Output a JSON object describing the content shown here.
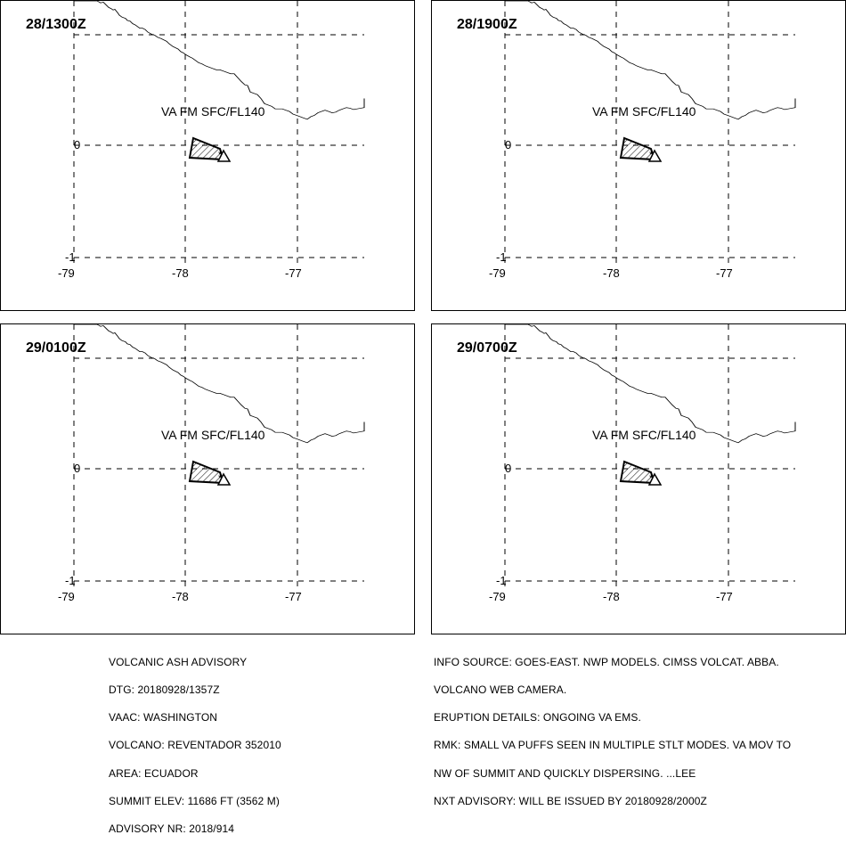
{
  "panels": [
    {
      "title": "28/1300Z",
      "va_label": "VA FM SFC/FL140"
    },
    {
      "title": "28/1900Z",
      "va_label": "VA FM SFC/FL140"
    },
    {
      "title": "29/0100Z",
      "va_label": "VA FM SFC/FL140"
    },
    {
      "title": "29/0700Z",
      "va_label": "VA FM SFC/FL140"
    }
  ],
  "axes": {
    "y_ticks": [
      "0",
      "-1"
    ],
    "x_ticks": [
      "-79",
      "-78",
      "-77"
    ]
  },
  "advisory_left": [
    "VOLCANIC ASH ADVISORY",
    "DTG: 20180928/1357Z",
    "VAAC: WASHINGTON",
    "VOLCANO: REVENTADOR 352010",
    "AREA: ECUADOR",
    "SUMMIT ELEV: 11686 FT (3562 M)",
    "ADVISORY NR: 2018/914"
  ],
  "advisory_right": [
    "INFO SOURCE: GOES-EAST. NWP MODELS. CIMSS VOLCAT. ABBA.",
    "VOLCANO WEB CAMERA.",
    "ERUPTION DETAILS: ONGOING VA EMS.",
    "RMK: SMALL VA PUFFS SEEN IN MULTIPLE STLT MODES. VA MOV TO",
    "NW OF SUMMIT AND QUICKLY DISPERSING. ...LEE",
    "NXT ADVISORY: WILL BE ISSUED BY 20180928/2000Z"
  ]
}
